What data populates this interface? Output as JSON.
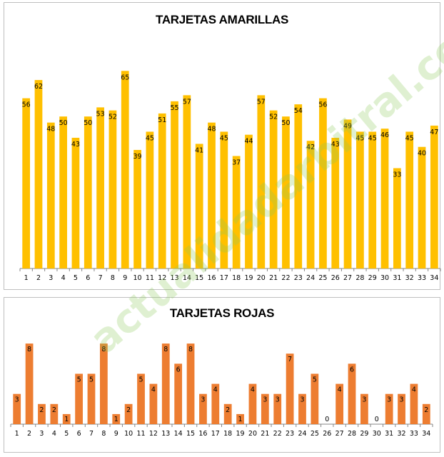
{
  "chart_data": [
    {
      "type": "bar",
      "title": "TARJETAS AMARILLAS",
      "xlabel": "",
      "ylabel": "",
      "ylim": [
        0,
        70
      ],
      "grid": false,
      "color": "#FFC000",
      "categories": [
        "1",
        "2",
        "3",
        "4",
        "5",
        "6",
        "7",
        "8",
        "9",
        "10",
        "11",
        "12",
        "13",
        "14",
        "15",
        "16",
        "17",
        "18",
        "19",
        "20",
        "21",
        "22",
        "23",
        "24",
        "25",
        "26",
        "27",
        "28",
        "29",
        "30",
        "31",
        "32",
        "33",
        "34"
      ],
      "values": [
        56,
        62,
        48,
        50,
        43,
        50,
        53,
        52,
        65,
        39,
        45,
        51,
        55,
        57,
        41,
        48,
        45,
        37,
        44,
        57,
        52,
        50,
        54,
        42,
        56,
        43,
        49,
        45,
        45,
        46,
        33,
        45,
        40,
        47
      ]
    },
    {
      "type": "bar",
      "title": "TARJETAS ROJAS",
      "xlabel": "",
      "ylabel": "",
      "ylim": [
        0,
        9
      ],
      "grid": false,
      "color": "#ED7D31",
      "categories": [
        "1",
        "2",
        "3",
        "4",
        "5",
        "6",
        "7",
        "8",
        "9",
        "10",
        "11",
        "12",
        "13",
        "14",
        "15",
        "16",
        "17",
        "18",
        "19",
        "20",
        "21",
        "22",
        "23",
        "24",
        "25",
        "26",
        "27",
        "28",
        "29",
        "30",
        "31",
        "32",
        "33",
        "34"
      ],
      "values": [
        3,
        8,
        2,
        2,
        1,
        5,
        5,
        8,
        1,
        2,
        5,
        4,
        8,
        6,
        8,
        3,
        4,
        2,
        1,
        4,
        3,
        3,
        7,
        3,
        5,
        0,
        4,
        6,
        3,
        0,
        3,
        3,
        4,
        2
      ]
    }
  ],
  "watermark": "actualidadarbitral.com"
}
